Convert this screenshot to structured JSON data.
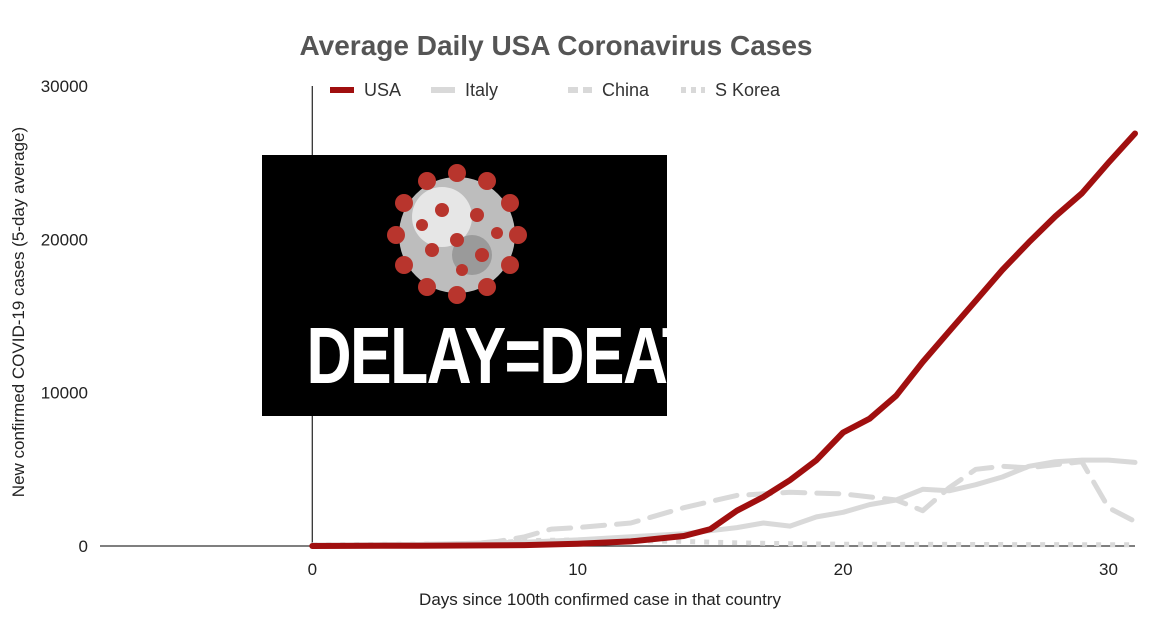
{
  "chart_data": {
    "type": "line",
    "title": "Average Daily USA Coronavirus Cases",
    "xlabel": "Days since 100th confirmed case in that country",
    "ylabel": "New confirmed COVID-19 cases (5-day average)",
    "xlim": [
      -8,
      31
    ],
    "ylim": [
      0,
      30000
    ],
    "xticks": [
      0,
      10,
      20,
      30
    ],
    "yticks": [
      0,
      10000,
      20000,
      30000
    ],
    "grid": false,
    "legend_position": "top",
    "series": [
      {
        "name": "USA",
        "color": "#a00f0f",
        "style": "solid",
        "x": [
          0,
          4,
          8,
          10,
          12,
          14,
          15,
          16,
          17,
          18,
          19,
          20,
          21,
          22,
          23,
          24,
          25,
          26,
          27,
          28,
          29,
          30,
          31
        ],
        "y": [
          0,
          20,
          60,
          150,
          300,
          650,
          1100,
          2300,
          3200,
          4300,
          5600,
          7400,
          8300,
          9800,
          12000,
          14000,
          16000,
          18000,
          19800,
          21500,
          23000,
          25000,
          26900
        ]
      },
      {
        "name": "Italy",
        "color": "#d9d9d9",
        "style": "solid",
        "x": [
          0,
          4,
          8,
          10,
          12,
          14,
          15,
          16,
          17,
          18,
          19,
          20,
          21,
          22,
          23,
          24,
          25,
          26,
          27,
          28,
          29,
          30,
          31
        ],
        "y": [
          50,
          100,
          250,
          400,
          600,
          800,
          1000,
          1200,
          1500,
          1300,
          1900,
          2200,
          2700,
          3000,
          3700,
          3600,
          4000,
          4500,
          5200,
          5500,
          5600,
          5600,
          5450
        ]
      },
      {
        "name": "China",
        "color": "#d9d9d9",
        "style": "dashed",
        "x": [
          0,
          4,
          6,
          7,
          8,
          9,
          10,
          12,
          14,
          16,
          18,
          20,
          22,
          23,
          24,
          25,
          26,
          27,
          28,
          29,
          29.5,
          30,
          31
        ],
        "y": [
          50,
          100,
          150,
          300,
          600,
          1100,
          1200,
          1500,
          2500,
          3300,
          3500,
          3400,
          3000,
          2300,
          3800,
          5000,
          5200,
          5100,
          5300,
          5500,
          4000,
          2500,
          1600
        ]
      },
      {
        "name": "S Korea",
        "color": "#d9d9d9",
        "style": "dotted",
        "x": [
          0,
          4,
          6,
          7,
          8,
          10,
          12,
          14,
          16,
          18,
          20,
          25,
          31
        ],
        "y": [
          80,
          120,
          150,
          200,
          350,
          400,
          350,
          300,
          200,
          150,
          120,
          100,
          80
        ]
      }
    ]
  },
  "overlay": {
    "text": "DELAY=DEATH",
    "image": "coronavirus-icon"
  }
}
